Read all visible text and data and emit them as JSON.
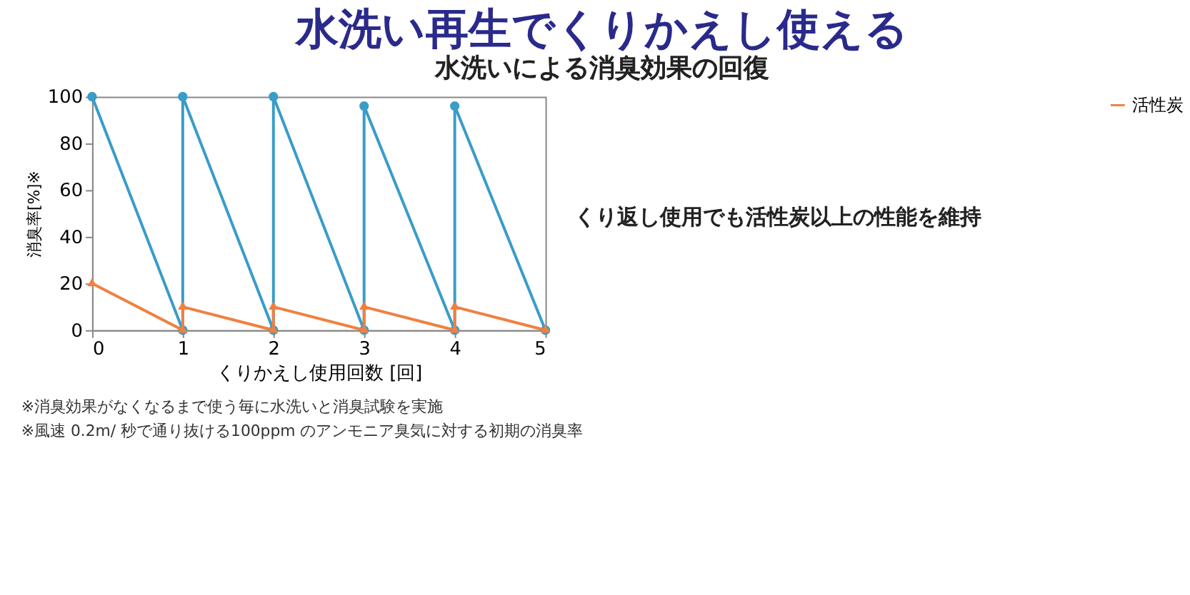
{
  "chart_data": {
    "type": "line",
    "title": "水洗い再生でくりかえし使える",
    "subtitle": "水洗いによる消臭効果の回復",
    "xlabel": "くりかえし使用回数 [回]",
    "ylabel": "消臭率[%]※",
    "series": [
      {
        "color": "#3a9cc8",
        "x": [
          0,
          1,
          1,
          2,
          2,
          3,
          3,
          4,
          4,
          5
        ],
        "values": [
          100,
          0,
          100,
          0,
          100,
          0,
          96,
          0,
          96,
          0
        ],
        "marker": "circle"
      },
      {
        "name": "活性炭",
        "color": "#f08040",
        "x": [
          0,
          1,
          1,
          2,
          2,
          3,
          3,
          4,
          4,
          5
        ],
        "values": [
          20,
          0,
          10,
          0,
          10,
          0,
          10,
          0,
          10,
          0
        ],
        "marker": "triangle"
      }
    ],
    "xlim": [
      0,
      5
    ],
    "xticks": [
      0,
      1,
      2,
      3,
      4,
      5
    ],
    "ylim": [
      0,
      100
    ],
    "yticks": [
      0,
      20,
      40,
      60,
      80,
      100
    ],
    "grid": false,
    "legend": "right",
    "line_style": "solid",
    "annotations": [
      "くり返し使用でも活性炭以上の性能を維持",
      "※消臭効果がなくなるまで使う毎に水洗いと消臭試験を実施",
      "※風速 0.2m/ 秒で通り抜ける100ppm のアンモニア臭気に対する初期の消臭率"
    ]
  }
}
